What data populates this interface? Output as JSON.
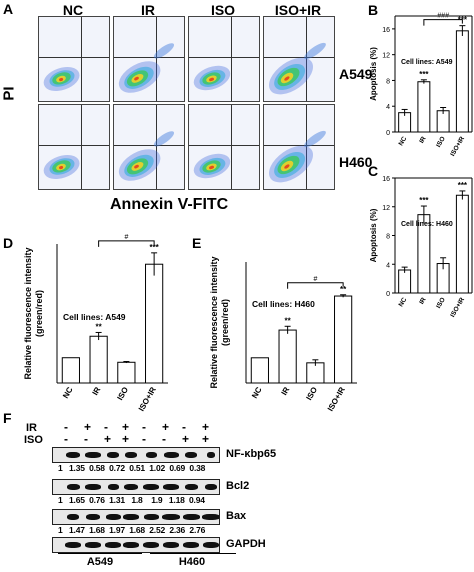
{
  "panel_labels": {
    "A": "A",
    "B": "B",
    "C": "C",
    "D": "D",
    "E": "E",
    "F": "F"
  },
  "flow": {
    "columns": [
      "NC",
      "IR",
      "ISO",
      "ISO+IR"
    ],
    "rows": [
      "A549",
      "H460"
    ],
    "y_axis": "PI",
    "x_axis": "Annexin V-FITC"
  },
  "western": {
    "ir_label": "IR",
    "iso_label": "ISO",
    "ir_signs": [
      "-",
      "+",
      "-",
      "+",
      "-",
      "+",
      "-",
      "+"
    ],
    "iso_signs": [
      "-",
      "-",
      "+",
      "+",
      "-",
      "-",
      "+",
      "+"
    ],
    "proteins": [
      {
        "name": "NF-κbp65",
        "values": "1   1.35  0.58  0.72  0.51  1.02  0.69  0.38"
      },
      {
        "name": "Bcl2",
        "values": "1   1.65  0.76  1.31   1.8    1.9   1.18  0.94"
      },
      {
        "name": "Bax",
        "values": "1   1.47  1.68  1.97  1.68  2.52  2.36  2.76"
      },
      {
        "name": "GAPDH",
        "values": ""
      }
    ],
    "cell_lines": [
      "A549",
      "H460"
    ]
  },
  "chart_data": [
    {
      "panel": "B",
      "type": "bar",
      "categories": [
        "NC",
        "IR",
        "ISO",
        "ISO+IR"
      ],
      "values": [
        3.0,
        7.8,
        3.3,
        15.7
      ],
      "errors": [
        0.5,
        0.3,
        0.5,
        0.8
      ],
      "significance": [
        "",
        "***",
        "",
        "***"
      ],
      "bracket": "###",
      "annotation": "Cell lines: A549",
      "ylabel": "Apoptosis (%)",
      "ylim": [
        0,
        18
      ],
      "yticks": [
        0,
        4,
        8,
        12,
        16
      ]
    },
    {
      "panel": "C",
      "type": "bar",
      "categories": [
        "NC",
        "IR",
        "ISO",
        "ISO+IR"
      ],
      "values": [
        3.2,
        10.9,
        4.1,
        13.6
      ],
      "errors": [
        0.4,
        1.2,
        0.8,
        0.6
      ],
      "significance": [
        "",
        "***",
        "",
        "***"
      ],
      "annotation": "Cell lines: H460",
      "ylabel": "Apoptosis (%)",
      "ylim": [
        0,
        16
      ],
      "yticks": [
        0,
        4,
        8,
        12,
        16
      ]
    },
    {
      "panel": "D",
      "type": "bar",
      "categories": [
        "NC",
        "IR",
        "ISO",
        "ISO+IR"
      ],
      "values": [
        1.0,
        1.85,
        0.82,
        4.7
      ],
      "errors": [
        0,
        0.15,
        0.03,
        0.45
      ],
      "significance": [
        "",
        "**",
        "",
        "***"
      ],
      "bracket": "#",
      "annotation": "Cell lines: A549",
      "ylabel": "Relative fluorescence intensity (green/red)",
      "ylim": [
        0,
        5.5
      ]
    },
    {
      "panel": "E",
      "type": "bar",
      "categories": [
        "NC",
        "IR",
        "ISO",
        "ISO+IR"
      ],
      "values": [
        1.0,
        2.1,
        0.8,
        3.45
      ],
      "errors": [
        0,
        0.15,
        0.12,
        0.05
      ],
      "significance": [
        "",
        "**",
        "",
        "**"
      ],
      "bracket": "#",
      "annotation": "Cell lines: H460",
      "ylabel": "Relative fluorescence intensity (green/red)",
      "ylim": [
        0,
        4.8
      ]
    }
  ]
}
